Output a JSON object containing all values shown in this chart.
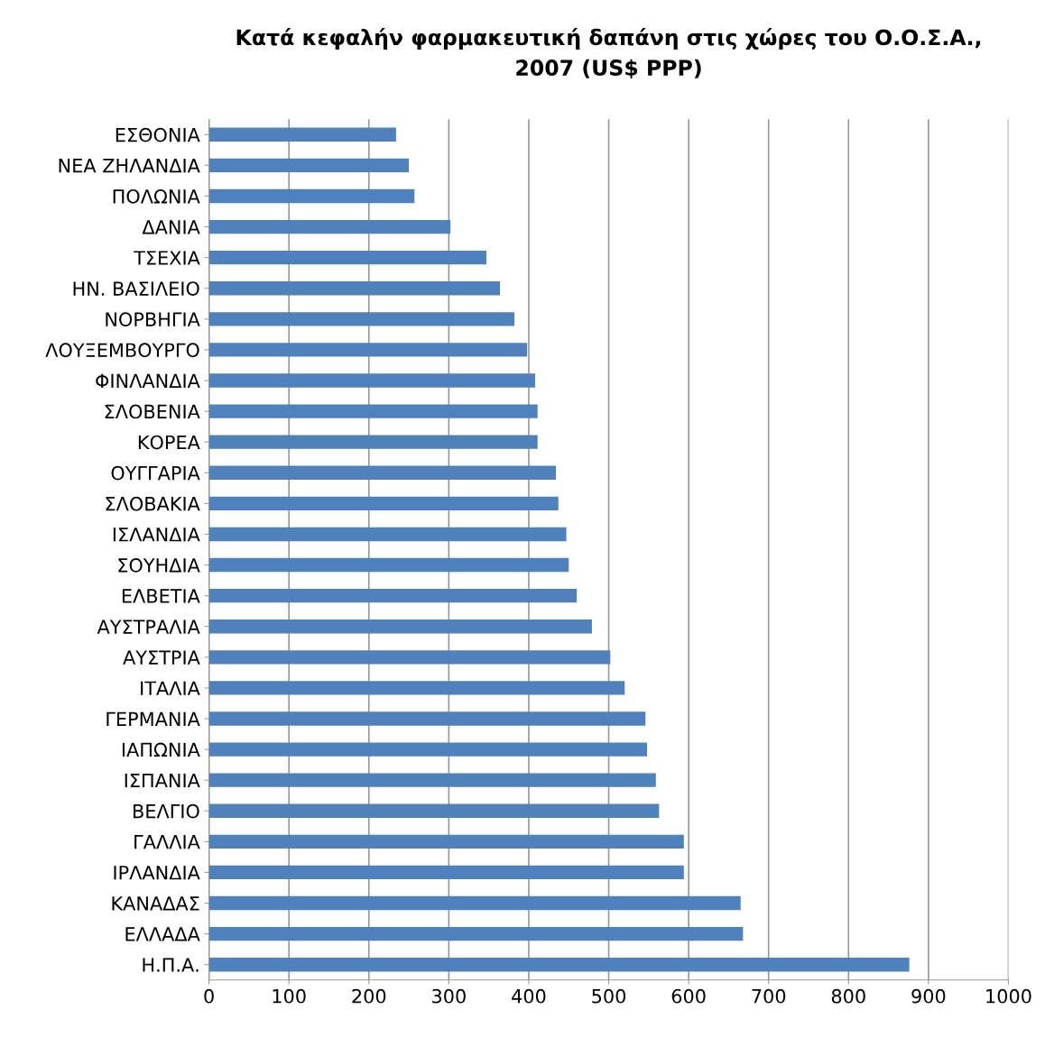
{
  "chart_data": {
    "type": "bar",
    "orientation": "horizontal",
    "title": "Κατά κεφαλήν φαρμακευτική δαπάνη στις χώρες του Ο.Ο.Σ.Α.,\n2007 (US$ PPP)",
    "categories": [
      "ΕΣΘΟΝΙΑ",
      "ΝΕΑ ΖΗΛΑΝΔΙΑ",
      "ΠΟΛΩΝΙΑ",
      "ΔΑΝΙΑ",
      "ΤΣΕΧΙΑ",
      "ΗΝ. ΒΑΣΙΛΕΙΟ",
      "ΝΟΡΒΗΓΙΑ",
      "ΛΟΥΞΕΜΒΟΥΡΓΟ",
      "ΦΙΝΛΑΝΔΙΑ",
      "ΣΛΟΒΕΝΙΑ",
      "ΚΟΡΕΑ",
      "ΟΥΓΓΑΡΙΑ",
      "ΣΛΟΒΑΚΙΑ",
      "ΙΣΛΑΝΔΙΑ",
      "ΣΟΥΗΔΙΑ",
      "ΕΛΒΕΤΙΑ",
      "ΑΥΣΤΡΑΛΙΑ",
      "ΑΥΣΤΡΙΑ",
      "ΙΤΑΛΙΑ",
      "ΓΕΡΜΑΝΙΑ",
      "ΙΑΠΩΝΙΑ",
      "ΙΣΠΑΝΙΑ",
      "ΒΕΛΓΙΟ",
      "ΓΑΛΛΙΑ",
      "ΙΡΛΑΝΔΙΑ",
      "ΚΑΝΑΔΑΣ",
      "ΕΛΛΑΔΑ",
      "Η.Π.Α."
    ],
    "values": [
      234,
      250,
      257,
      302,
      347,
      364,
      382,
      398,
      408,
      411,
      411,
      434,
      437,
      447,
      450,
      460,
      479,
      502,
      520,
      546,
      548,
      559,
      563,
      594,
      594,
      665,
      668,
      876
    ],
    "color": "#4f81bd",
    "xlim": [
      0,
      1000
    ],
    "xticks": [
      0,
      100,
      200,
      300,
      400,
      500,
      600,
      700,
      800,
      900,
      1000
    ],
    "grid": "x"
  }
}
